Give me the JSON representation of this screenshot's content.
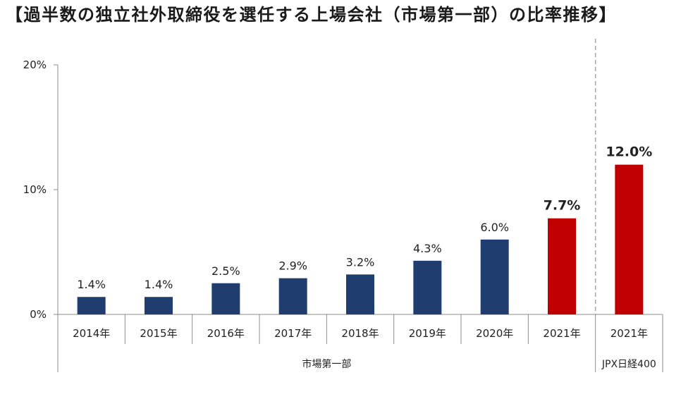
{
  "colors": {
    "bar": "#1f3d6e",
    "highlight_bar": "#c00000",
    "axis": "#8c8c8c",
    "divider": "#a6a6a6",
    "text": "#222222"
  },
  "chart_data": {
    "type": "bar",
    "title": "【過半数の独立社外取締役を選任する上場会社（市場第一部）の比率推移】",
    "categories": [
      "2014年",
      "2015年",
      "2016年",
      "2017年",
      "2018年",
      "2019年",
      "2020年",
      "2021年",
      "2021年"
    ],
    "values": [
      1.4,
      1.4,
      2.5,
      2.9,
      3.2,
      4.3,
      6.0,
      7.7,
      12.0
    ],
    "data_labels": [
      "1.4%",
      "1.4%",
      "2.5%",
      "2.9%",
      "3.2%",
      "4.3%",
      "6.0%",
      "7.7%",
      "12.0%"
    ],
    "highlight": [
      false,
      false,
      false,
      false,
      false,
      false,
      false,
      true,
      true
    ],
    "category_groups": [
      {
        "label": "市場第一部",
        "count": 8
      },
      {
        "label": "JPX日経400",
        "count": 1
      }
    ],
    "ylim": [
      0,
      20
    ],
    "yticks": [
      0,
      10,
      20
    ],
    "ytick_labels": [
      "0%",
      "10%",
      "20%"
    ],
    "grid": false
  }
}
